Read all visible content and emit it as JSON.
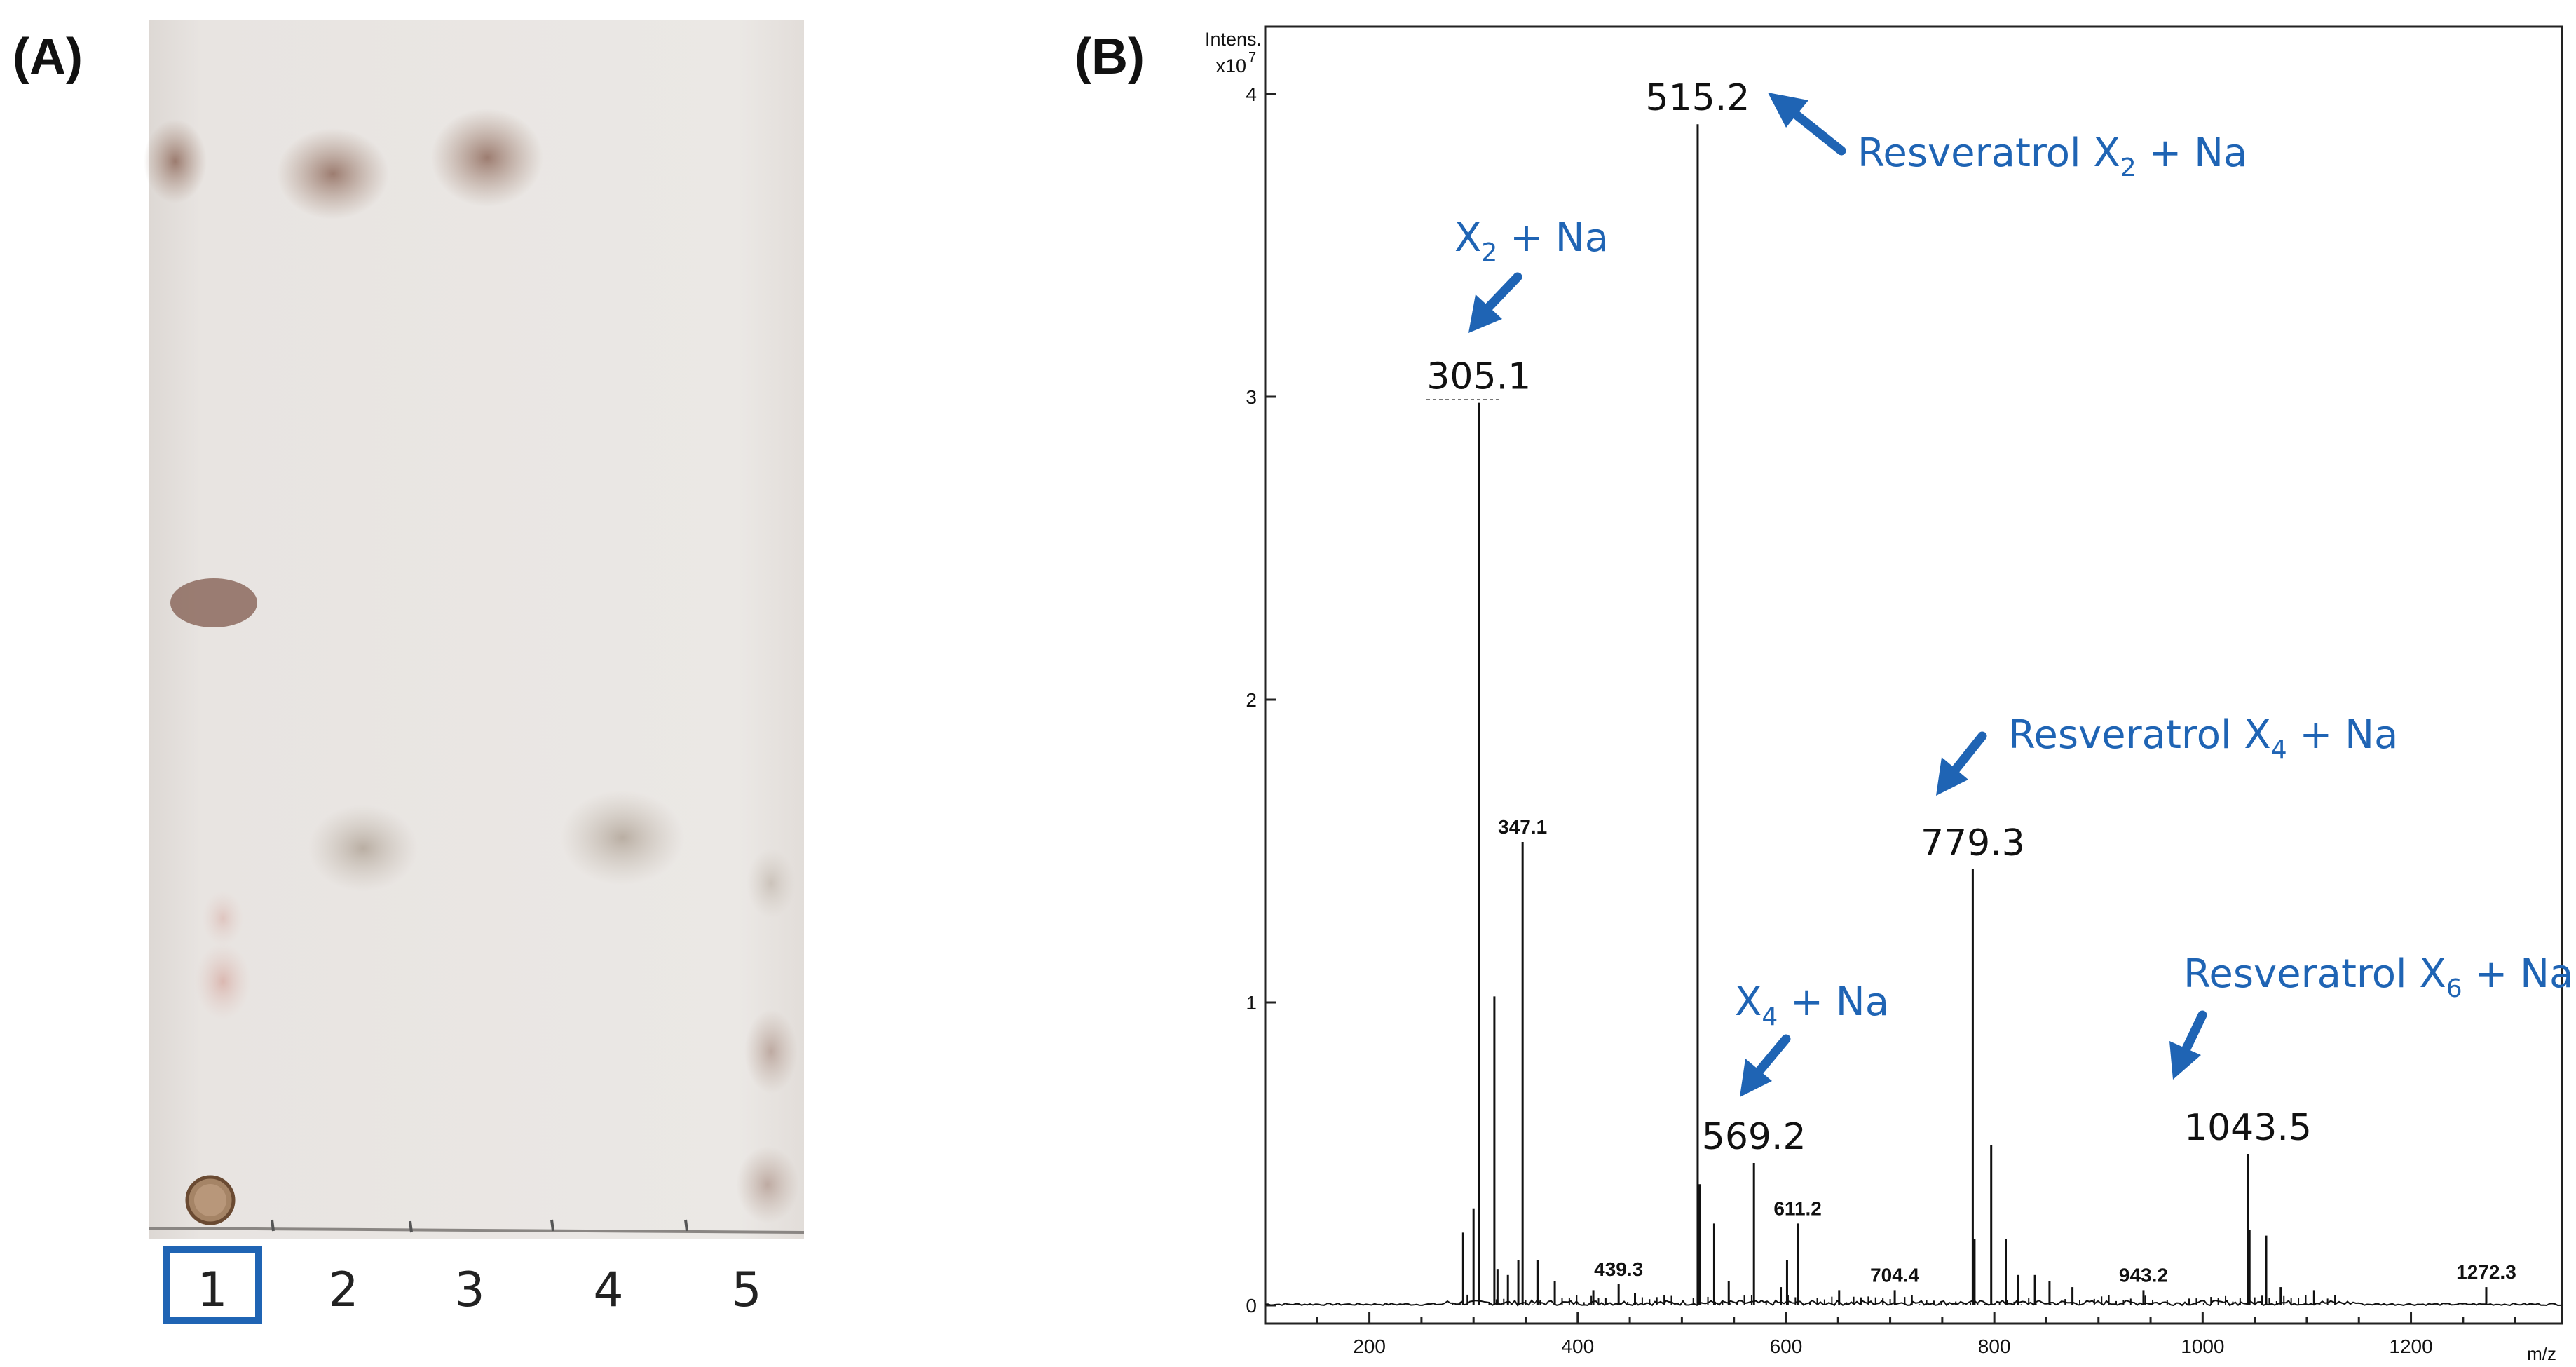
{
  "panel_a": {
    "label": "(A)",
    "lanes": [
      "1",
      "2",
      "3",
      "4",
      "5"
    ],
    "highlighted_lane": "1"
  },
  "panel_b": {
    "label": "(B)",
    "y_axis_label_line1": "Intens.",
    "y_axis_label_line2": "x10",
    "y_axis_exponent": "7",
    "x_axis_unit": "m/z",
    "annotations": {
      "resveratrol_x2": {
        "prefix": "Resveratrol X",
        "sub": "2",
        "suffix": " + Na"
      },
      "x2": {
        "prefix": "X",
        "sub": "2",
        "suffix": " + Na"
      },
      "resveratrol_x4": {
        "prefix": "Resveratrol X",
        "sub": "4",
        "suffix": " + Na"
      },
      "x4": {
        "prefix": "X",
        "sub": "4",
        "suffix": " + Na"
      },
      "resveratrol_x6": {
        "prefix": "Resveratrol X",
        "sub": "6",
        "suffix": " + Na"
      }
    },
    "annotation_color": "#1f64b4"
  },
  "chart_data": {
    "type": "line",
    "subtype": "mass-spectrum",
    "xlabel": "m/z",
    "ylabel": "Intens. x10^7",
    "xlim": [
      100,
      1345
    ],
    "ylim": [
      0,
      4.1
    ],
    "x_ticks": [
      200,
      400,
      600,
      800,
      1000,
      1200
    ],
    "y_ticks": [
      0,
      1,
      2,
      3,
      4
    ],
    "labeled_peaks": [
      {
        "mz": 305.1,
        "label": "305.1",
        "intensity": 2.98,
        "style": "large"
      },
      {
        "mz": 347.1,
        "label": "347.1",
        "intensity": 1.53,
        "style": "small"
      },
      {
        "mz": 439.3,
        "label": "439.3",
        "intensity": 0.07,
        "style": "small"
      },
      {
        "mz": 515.2,
        "label": "515.2",
        "intensity": 3.9,
        "style": "large"
      },
      {
        "mz": 569.2,
        "label": "569.2",
        "intensity": 0.47,
        "style": "large"
      },
      {
        "mz": 611.2,
        "label": "611.2",
        "intensity": 0.27,
        "style": "small"
      },
      {
        "mz": 704.4,
        "label": "704.4",
        "intensity": 0.05,
        "style": "small"
      },
      {
        "mz": 779.3,
        "label": "779.3",
        "intensity": 1.44,
        "style": "large"
      },
      {
        "mz": 943.2,
        "label": "943.2",
        "intensity": 0.05,
        "style": "small"
      },
      {
        "mz": 1043.5,
        "label": "1043.5",
        "intensity": 0.5,
        "style": "large"
      },
      {
        "mz": 1272.3,
        "label": "1272.3",
        "intensity": 0.06,
        "style": "small"
      }
    ],
    "other_peaks": [
      {
        "mz": 290,
        "intensity": 0.24
      },
      {
        "mz": 300,
        "intensity": 0.32
      },
      {
        "mz": 320,
        "intensity": 1.02
      },
      {
        "mz": 323,
        "intensity": 0.12
      },
      {
        "mz": 333,
        "intensity": 0.1
      },
      {
        "mz": 343,
        "intensity": 0.15
      },
      {
        "mz": 362,
        "intensity": 0.15
      },
      {
        "mz": 378,
        "intensity": 0.08
      },
      {
        "mz": 415,
        "intensity": 0.05
      },
      {
        "mz": 455,
        "intensity": 0.04
      },
      {
        "mz": 517,
        "intensity": 0.4
      },
      {
        "mz": 531,
        "intensity": 0.27
      },
      {
        "mz": 545,
        "intensity": 0.08
      },
      {
        "mz": 595,
        "intensity": 0.06
      },
      {
        "mz": 601,
        "intensity": 0.15
      },
      {
        "mz": 651,
        "intensity": 0.05
      },
      {
        "mz": 781,
        "intensity": 0.22
      },
      {
        "mz": 797,
        "intensity": 0.53
      },
      {
        "mz": 811,
        "intensity": 0.22
      },
      {
        "mz": 823,
        "intensity": 0.1
      },
      {
        "mz": 839,
        "intensity": 0.1
      },
      {
        "mz": 853,
        "intensity": 0.08
      },
      {
        "mz": 875,
        "intensity": 0.06
      },
      {
        "mz": 1045,
        "intensity": 0.25
      },
      {
        "mz": 1061,
        "intensity": 0.23
      },
      {
        "mz": 1075,
        "intensity": 0.06
      },
      {
        "mz": 1107,
        "intensity": 0.05
      }
    ]
  }
}
